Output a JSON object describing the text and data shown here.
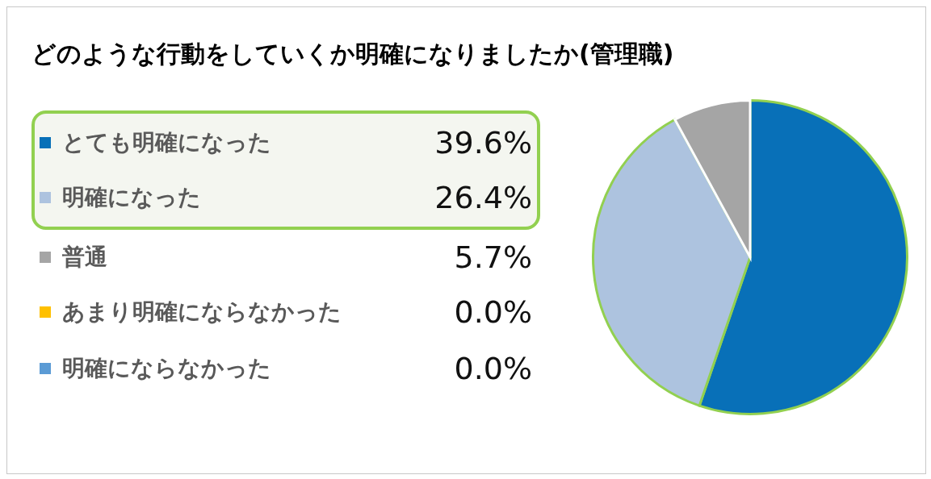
{
  "chart_data": {
    "type": "pie",
    "title": "どのような行動をしていくか明確になりましたか(管理職)",
    "categories": [
      "とても明確になった",
      "明確になった",
      "普通",
      "あまり明確にならなかった",
      "明確にならなかった"
    ],
    "values": [
      39.6,
      26.4,
      5.7,
      0.0,
      0.0
    ],
    "colors": [
      "#0870b8",
      "#adc3df",
      "#a5a5a5",
      "#ffc000",
      "#5b9bd5"
    ],
    "value_labels": [
      "39.6%",
      "26.4%",
      "5.7%",
      "0.0%",
      "0.0%"
    ],
    "legend": "left"
  }
}
